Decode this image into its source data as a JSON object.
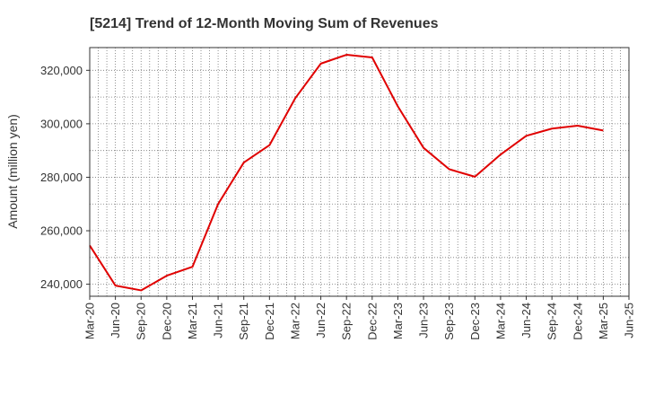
{
  "chart_data": {
    "type": "line",
    "title": "[5214]  Trend of 12-Month Moving Sum of Revenues",
    "ylabel": "Amount (million yen)",
    "xlabel": "",
    "x_tick_labels": [
      "Mar-20",
      "Jun-20",
      "Sep-20",
      "Dec-20",
      "Mar-21",
      "Jun-21",
      "Sep-21",
      "Dec-21",
      "Mar-22",
      "Jun-22",
      "Sep-22",
      "Dec-22",
      "Mar-23",
      "Jun-23",
      "Sep-23",
      "Dec-23",
      "Mar-24",
      "Jun-24",
      "Sep-24",
      "Dec-24",
      "Mar-25",
      "Jun-25"
    ],
    "y_ticks": [
      240000,
      260000,
      280000,
      300000,
      320000
    ],
    "y_tick_labels": [
      "240,000",
      "260,000",
      "280,000",
      "300,000",
      "320,000"
    ],
    "ylim": [
      235500,
      328500
    ],
    "grid": true,
    "series": [
      {
        "color": "#e00000",
        "x": [
          "Mar-20",
          "Jun-20",
          "Sep-20",
          "Dec-20",
          "Mar-21",
          "Jun-21",
          "Sep-21",
          "Dec-21",
          "Mar-22",
          "Jun-22",
          "Sep-22",
          "Dec-22",
          "Mar-23",
          "Jun-23",
          "Sep-23",
          "Dec-23",
          "Mar-24",
          "Jun-24",
          "Sep-24",
          "Dec-24",
          "Mar-25"
        ],
        "values": [
          254500,
          239500,
          237700,
          243200,
          246500,
          270000,
          285500,
          292000,
          309500,
          322500,
          325800,
          324800,
          306500,
          291000,
          283000,
          280200,
          288500,
          295500,
          298200,
          299300,
          297500
        ]
      }
    ]
  }
}
